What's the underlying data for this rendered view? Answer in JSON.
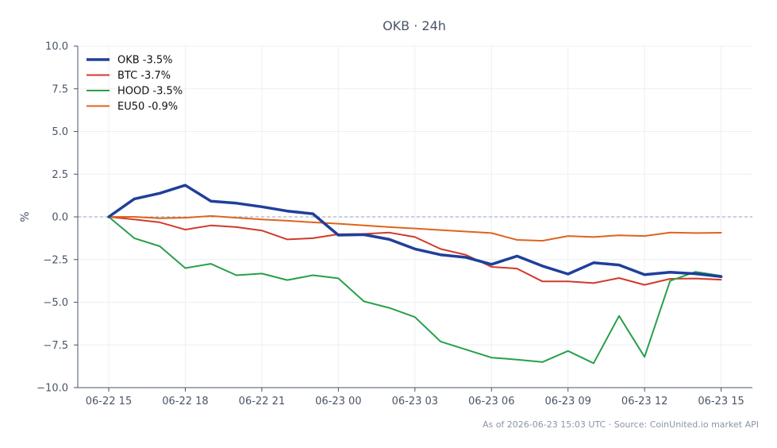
{
  "chart_data": {
    "type": "line",
    "title": "OKB · 24h",
    "xlabel": "",
    "ylabel": "%",
    "ylim": [
      -10,
      10
    ],
    "yticks": [
      10.0,
      7.5,
      5.0,
      2.5,
      0.0,
      -2.5,
      -5.0,
      -7.5,
      -10.0
    ],
    "ytick_labels": [
      "10.0",
      "7.5",
      "5.0",
      "2.5",
      "0.0",
      "−2.5",
      "−5.0",
      "−7.5",
      "−10.0"
    ],
    "x_tick_labels": [
      "06-22 15",
      "06-22 18",
      "06-22 21",
      "06-23 00",
      "06-23 03",
      "06-23 06",
      "06-23 09",
      "06-23 12",
      "06-23 15"
    ],
    "x_hours_per_tick": 3,
    "grid": true,
    "baseline": 0,
    "legend_position": "top-left",
    "series": [
      {
        "name": "OKB -3.5%",
        "color": "#1f3f99",
        "emphasis": true,
        "values": [
          0.0,
          1.05,
          1.38,
          1.85,
          0.92,
          0.8,
          0.59,
          0.34,
          0.18,
          -1.07,
          -1.04,
          -1.32,
          -1.88,
          -2.22,
          -2.37,
          -2.78,
          -2.3,
          -2.88,
          -3.35,
          -2.69,
          -2.82,
          -3.38,
          -3.24,
          -3.33,
          -3.5
        ]
      },
      {
        "name": "BTC -3.7%",
        "color": "#d03a2c",
        "emphasis": false,
        "values": [
          0.0,
          -0.15,
          -0.32,
          -0.75,
          -0.5,
          -0.6,
          -0.8,
          -1.32,
          -1.25,
          -1.02,
          -1.0,
          -0.92,
          -1.18,
          -1.88,
          -2.23,
          -2.93,
          -3.03,
          -3.78,
          -3.78,
          -3.88,
          -3.58,
          -3.98,
          -3.63,
          -3.61,
          -3.68
        ]
      },
      {
        "name": "HOOD -3.5%",
        "color": "#27a04a",
        "emphasis": false,
        "values": [
          0.0,
          -1.25,
          -1.72,
          -3.0,
          -2.75,
          -3.42,
          -3.32,
          -3.7,
          -3.42,
          -3.6,
          -4.95,
          -5.33,
          -5.87,
          -7.3,
          -7.77,
          -8.24,
          -8.36,
          -8.5,
          -7.85,
          -8.57,
          -5.8,
          -8.2,
          -3.75,
          -3.22,
          -3.45
        ]
      },
      {
        "name": "EU50 -0.9%",
        "color": "#e0631c",
        "emphasis": false,
        "values": [
          0.0,
          0.0,
          -0.08,
          -0.05,
          0.05,
          -0.05,
          -0.15,
          -0.23,
          -0.32,
          -0.4,
          -0.5,
          -0.6,
          -0.68,
          -0.77,
          -0.86,
          -0.95,
          -1.35,
          -1.4,
          -1.12,
          -1.18,
          -1.08,
          -1.12,
          -0.92,
          -0.95,
          -0.93
        ]
      }
    ]
  },
  "footer": "As of 2026-06-23 15:03 UTC · Source: CoinUnited.io market API"
}
